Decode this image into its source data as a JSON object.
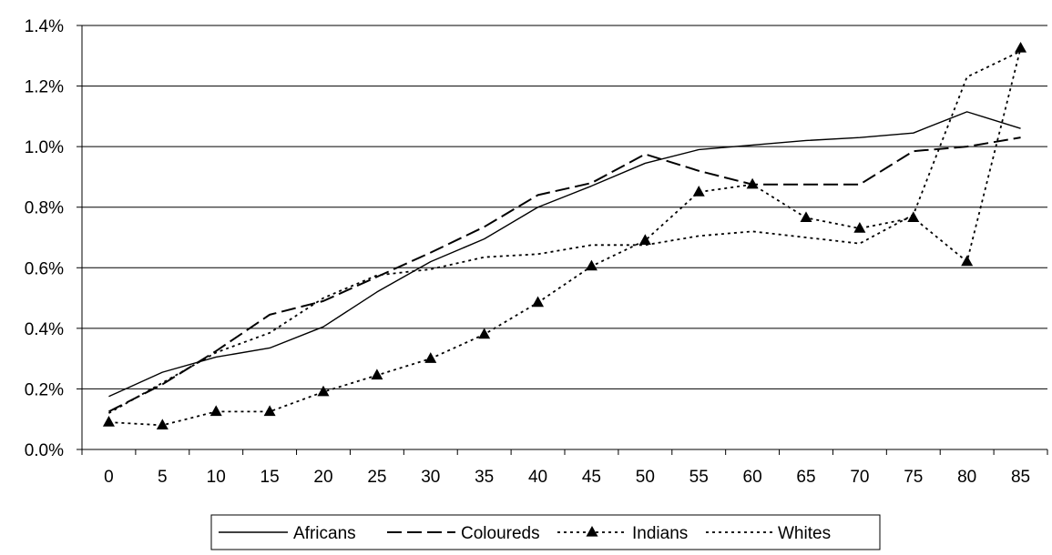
{
  "chart_data": {
    "type": "line",
    "title": "",
    "xlabel": "",
    "ylabel": "",
    "x": [
      "0",
      "5",
      "10",
      "15",
      "20",
      "25",
      "30",
      "35",
      "40",
      "45",
      "50",
      "55",
      "60",
      "65",
      "70",
      "75",
      "80",
      "85"
    ],
    "ylim": [
      0,
      1.4
    ],
    "y_ticks": [
      "0.0%",
      "0.2%",
      "0.4%",
      "0.6%",
      "0.8%",
      "1.0%",
      "1.2%",
      "1.4%"
    ],
    "grid": "horizontal",
    "legend_position": "bottom",
    "series": [
      {
        "name": "Africans",
        "style": "solid",
        "values": [
          0.175,
          0.255,
          0.305,
          0.335,
          0.405,
          0.52,
          0.62,
          0.695,
          0.8,
          0.87,
          0.945,
          0.99,
          1.005,
          1.02,
          1.03,
          1.045,
          1.115,
          1.06
        ]
      },
      {
        "name": "Coloureds",
        "style": "dashed",
        "values": [
          0.125,
          0.215,
          0.325,
          0.445,
          0.49,
          0.57,
          0.65,
          0.735,
          0.84,
          0.88,
          0.975,
          0.92,
          0.875,
          0.875,
          0.875,
          0.985,
          1.0,
          1.03
        ]
      },
      {
        "name": "Indians",
        "style": "dotted-triangle",
        "values": [
          0.09,
          0.08,
          0.125,
          0.125,
          0.19,
          0.245,
          0.3,
          0.38,
          0.485,
          0.605,
          0.69,
          0.85,
          0.875,
          0.765,
          0.73,
          0.765,
          0.62,
          1.325
        ]
      },
      {
        "name": "Whites",
        "style": "dotted",
        "values": [
          0.12,
          0.22,
          0.32,
          0.385,
          0.5,
          0.575,
          0.595,
          0.635,
          0.645,
          0.675,
          0.675,
          0.705,
          0.72,
          0.7,
          0.68,
          0.775,
          1.23,
          1.315
        ]
      }
    ]
  }
}
